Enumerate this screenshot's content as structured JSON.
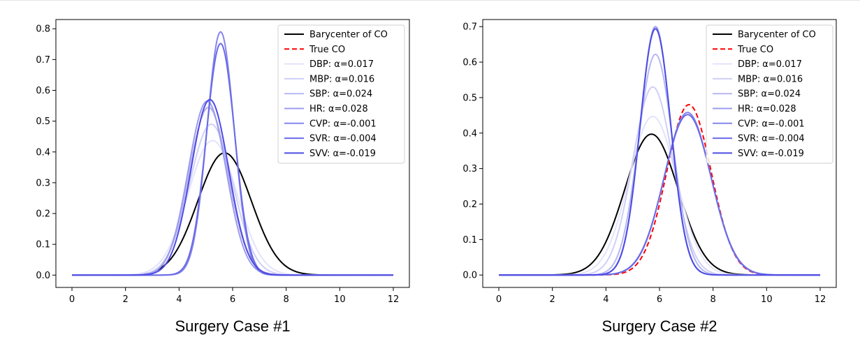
{
  "chart_data": [
    {
      "type": "line",
      "title": "",
      "caption": "Surgery Case #1",
      "xlabel": "",
      "ylabel": "",
      "xlim": [
        -0.6,
        12.6
      ],
      "ylim": [
        -0.04,
        0.83
      ],
      "xticks": [
        0,
        2,
        4,
        6,
        8,
        10,
        12
      ],
      "yticks": [
        0.0,
        0.1,
        0.2,
        0.3,
        0.4,
        0.5,
        0.6,
        0.7,
        0.8
      ],
      "grid": false,
      "legend_position": "top-right",
      "series": [
        {
          "label": "Barycenter of CO",
          "color": "#000000",
          "style": "solid",
          "mean": 5.7,
          "sd": 1.0,
          "peak": 0.397
        },
        {
          "label": "True CO",
          "color": "#ff0000",
          "style": "dashed",
          "mean": 5.1,
          "sd": 0.73,
          "peak": 0.545
        },
        {
          "label": "DBP: α=0.017",
          "color": "#e3e3fb",
          "style": "solid",
          "mean": 5.25,
          "sd": 0.91,
          "peak": 0.437
        },
        {
          "label": "MBP: α=0.016",
          "color": "#cfcff7",
          "style": "solid",
          "mean": 5.2,
          "sd": 0.81,
          "peak": 0.49
        },
        {
          "label": "SBP: α=0.024",
          "color": "#b7b7f3",
          "style": "solid",
          "mean": 5.1,
          "sd": 0.73,
          "peak": 0.545
        },
        {
          "label": "HR: α=0.028",
          "color": "#9c9cef",
          "style": "solid",
          "mean": 5.05,
          "sd": 0.705,
          "peak": 0.565
        },
        {
          "label": "CVP: α=-0.001",
          "color": "#8585ec",
          "style": "solid",
          "mean": 5.55,
          "sd": 0.505,
          "peak": 0.79
        },
        {
          "label": "SVR: α=-0.004",
          "color": "#6a6ae8",
          "style": "solid",
          "mean": 5.55,
          "sd": 0.53,
          "peak": 0.752
        },
        {
          "label": "SVV: α=-0.019",
          "color": "#4c4ce4",
          "style": "solid",
          "mean": 5.15,
          "sd": 0.7,
          "peak": 0.57
        }
      ]
    },
    {
      "type": "line",
      "title": "",
      "caption": "Surgery Case #2",
      "xlabel": "",
      "ylabel": "",
      "xlim": [
        -0.6,
        12.6
      ],
      "ylim": [
        -0.035,
        0.72
      ],
      "xticks": [
        0,
        2,
        4,
        6,
        8,
        10,
        12
      ],
      "yticks": [
        0.0,
        0.1,
        0.2,
        0.3,
        0.4,
        0.5,
        0.6,
        0.7
      ],
      "grid": false,
      "legend_position": "top-right",
      "series": [
        {
          "label": "Barycenter of CO",
          "color": "#000000",
          "style": "solid",
          "mean": 5.7,
          "sd": 1.0,
          "peak": 0.397
        },
        {
          "label": "True CO",
          "color": "#ff0000",
          "style": "dashed",
          "mean": 7.1,
          "sd": 0.83,
          "peak": 0.48
        },
        {
          "label": "DBP: α=0.017",
          "color": "#e3e3fb",
          "style": "solid",
          "mean": 5.75,
          "sd": 0.89,
          "peak": 0.447
        },
        {
          "label": "MBP: α=0.016",
          "color": "#cfcff7",
          "style": "solid",
          "mean": 5.75,
          "sd": 0.75,
          "peak": 0.53
        },
        {
          "label": "SBP: α=0.024",
          "color": "#b7b7f3",
          "style": "solid",
          "mean": 5.85,
          "sd": 0.64,
          "peak": 0.622
        },
        {
          "label": "HR: α=0.028",
          "color": "#9c9cef",
          "style": "solid",
          "mean": 5.85,
          "sd": 0.57,
          "peak": 0.7
        },
        {
          "label": "CVP: α=-0.001",
          "color": "#8585ec",
          "style": "solid",
          "mean": 7.05,
          "sd": 0.87,
          "peak": 0.458
        },
        {
          "label": "SVR: α=-0.004",
          "color": "#6a6ae8",
          "style": "solid",
          "mean": 7.05,
          "sd": 0.88,
          "peak": 0.452
        },
        {
          "label": "SVV: α=-0.019",
          "color": "#4c4ce4",
          "style": "solid",
          "mean": 5.85,
          "sd": 0.575,
          "peak": 0.694
        }
      ]
    }
  ]
}
